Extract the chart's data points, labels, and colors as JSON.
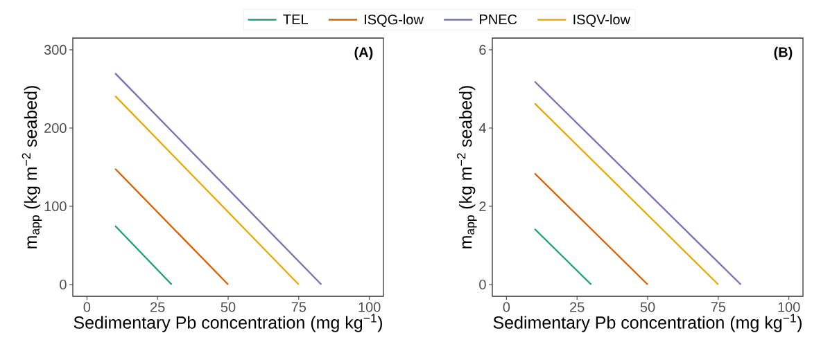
{
  "chart_data": [
    {
      "type": "line",
      "xlabel": "Sedimentary Pb concentration (mg kg$^{−1}$)",
      "ylabel": "m$_{app}$ (kg m$^{−2}$ seabed)",
      "annotations": [
        "(A)"
      ],
      "legend": "top",
      "grid": false,
      "marker": "none",
      "line_style": "solid",
      "xlim": [
        -5,
        105
      ],
      "xticks": [
        0,
        25,
        50,
        75,
        100
      ],
      "ylim": [
        -15,
        315
      ],
      "yticks": [
        0,
        100,
        200,
        300
      ],
      "series": [
        {
          "name": "TEL",
          "color": "#1b9e77",
          "x": [
            10,
            30
          ],
          "values": [
            75,
            0
          ]
        },
        {
          "name": "ISQG-low",
          "color": "#d95f02",
          "x": [
            10,
            50
          ],
          "values": [
            148,
            0
          ]
        },
        {
          "name": "PNEC",
          "color": "#7570b3",
          "x": [
            10,
            83
          ],
          "values": [
            270,
            0
          ]
        },
        {
          "name": "ISQV-low",
          "color": "#e6ab02",
          "x": [
            10,
            75
          ],
          "values": [
            241,
            0
          ]
        }
      ]
    },
    {
      "type": "line",
      "xlabel": "Sedimentary Pb concentration (mg kg$^{−1}$)",
      "ylabel": "m$_{app}$ (kg m$^{−2}$ seabed)",
      "annotations": [
        "(B)"
      ],
      "grid": false,
      "marker": "none",
      "line_style": "solid",
      "xlim": [
        -5,
        105
      ],
      "xticks": [
        0,
        25,
        50,
        75,
        100
      ],
      "ylim": [
        -0.3,
        6.3
      ],
      "yticks": [
        0,
        2,
        4,
        6
      ],
      "series": [
        {
          "color": "#1b9e77",
          "x": [
            10,
            30
          ],
          "values": [
            1.42,
            0
          ]
        },
        {
          "color": "#d95f02",
          "x": [
            10,
            50
          ],
          "values": [
            2.84,
            0
          ]
        },
        {
          "color": "#7570b3",
          "x": [
            10,
            83
          ],
          "values": [
            5.19,
            0
          ]
        },
        {
          "color": "#e6ab02",
          "x": [
            10,
            75
          ],
          "values": [
            4.63,
            0
          ]
        }
      ]
    }
  ]
}
